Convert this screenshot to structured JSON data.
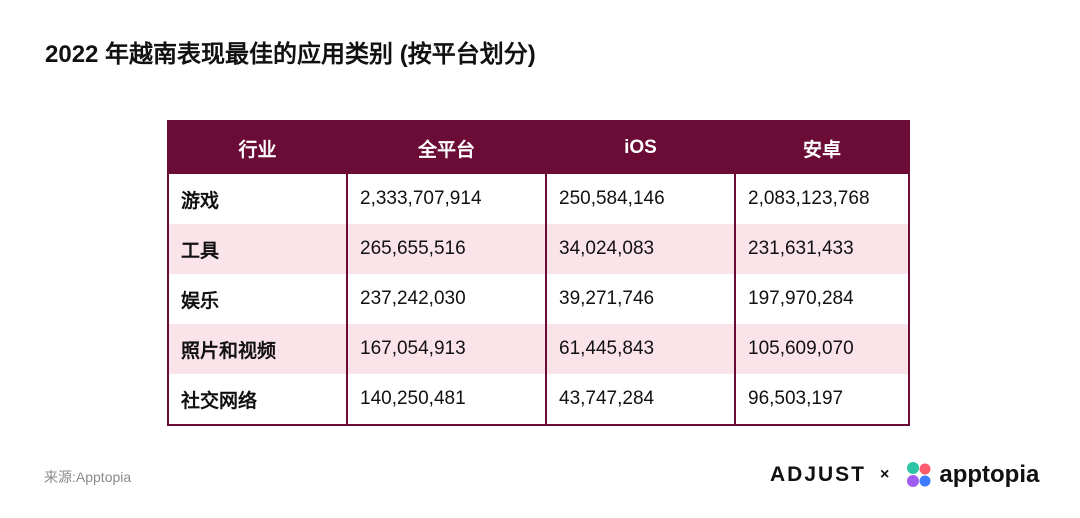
{
  "title": "2022 年越南表现最佳的应用类别 (按平台划分)",
  "chart_data": {
    "type": "table",
    "columns": [
      "行业",
      "全平台",
      "iOS",
      "安卓"
    ],
    "rows": [
      [
        "游戏",
        "2,333,707,914",
        "250,584,146",
        "2,083,123,768"
      ],
      [
        "工具",
        "265,655,516",
        "34,024,083",
        "231,631,433"
      ],
      [
        "娱乐",
        "237,242,030",
        "39,271,746",
        "197,970,284"
      ],
      [
        "照片和视频",
        "167,054,913",
        "61,445,843",
        "105,609,070"
      ],
      [
        "社交网络",
        "140,250,481",
        "43,747,284",
        "96,503,197"
      ]
    ],
    "colors": {
      "header_bg": "#6b0c36",
      "header_text": "#ffffff",
      "alt_row_bg": "#fbe3ea",
      "border": "#6b0c36"
    }
  },
  "source": "来源:Apptopia",
  "logos": {
    "adjust": "ADJUST",
    "separator": "×",
    "apptopia": "apptopia",
    "apptopia_icon_colors": [
      "#2ec4a6",
      "#ff5a6e",
      "#a05cf0",
      "#3d7bff"
    ]
  }
}
